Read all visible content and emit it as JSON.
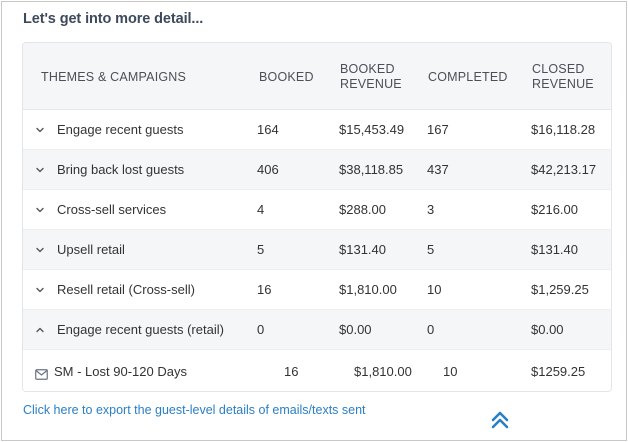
{
  "heading": "Let's get into more detail...",
  "columns": {
    "themes": "THEMES & CAMPAIGNS",
    "booked": "BOOKED",
    "booked_revenue": [
      "BOOKED",
      "REVENUE"
    ],
    "completed": "COMPLETED",
    "closed_revenue": [
      "CLOSED",
      "REVENUE"
    ]
  },
  "rows": [
    {
      "name": "Engage recent guests",
      "booked": "164",
      "booked_revenue": "$15,453.49",
      "completed": "167",
      "closed_revenue": "$16,118.28",
      "expanded": false
    },
    {
      "name": "Bring back lost guests",
      "booked": "406",
      "booked_revenue": "$38,118.85",
      "completed": "437",
      "closed_revenue": "$42,213.17",
      "expanded": false
    },
    {
      "name": "Cross-sell services",
      "booked": "4",
      "booked_revenue": "$288.00",
      "completed": "3",
      "closed_revenue": "$216.00",
      "expanded": false
    },
    {
      "name": "Upsell retail",
      "booked": "5",
      "booked_revenue": "$131.40",
      "completed": "5",
      "closed_revenue": "$131.40",
      "expanded": false
    },
    {
      "name": "Resell retail (Cross-sell)",
      "booked": "16",
      "booked_revenue": "$1,810.00",
      "completed": "10",
      "closed_revenue": "$1,259.25",
      "expanded": false
    },
    {
      "name": "Engage recent guests (retail)",
      "booked": "0",
      "booked_revenue": "$0.00",
      "completed": "0",
      "closed_revenue": "$0.00",
      "expanded": true
    }
  ],
  "campaign_row": {
    "icon": "mail-icon",
    "name": "SM - Lost 90-120 Days",
    "booked": "16",
    "booked_revenue": "$1,810.00",
    "completed": "10",
    "closed_revenue": "$1259.25"
  },
  "export_link": "Click here to export the guest-level details of emails/texts sent",
  "colors": {
    "link": "#2a7fc4",
    "header_bg": "#f5f6f8",
    "heading": "#3d4a5c"
  }
}
